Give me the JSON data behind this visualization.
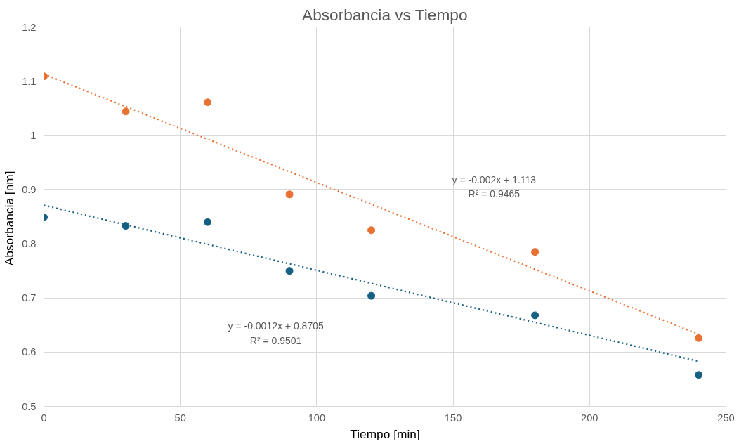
{
  "chart_data": {
    "type": "scatter",
    "title": "Absorbancia vs Tiempo",
    "xlabel": "Tiempo [min]",
    "ylabel": "Absorbancia  [nm]",
    "x": [
      0,
      30,
      60,
      90,
      120,
      180,
      240
    ],
    "series": [
      {
        "marker": "circle",
        "color": "#156082",
        "values": [
          0.849,
          0.833,
          0.84,
          0.75,
          0.704,
          0.668,
          0.558
        ]
      },
      {
        "marker": "circle",
        "color": "#e97132",
        "values": [
          1.109,
          1.044,
          1.061,
          0.891,
          0.825,
          0.785,
          0.626
        ]
      },
      {
        "type": "line",
        "marker": "none",
        "line_style": "dotted",
        "color": "#156082",
        "values": [
          0.871,
          0.835,
          0.799,
          0.763,
          0.727,
          0.655,
          0.583
        ]
      },
      {
        "type": "line",
        "marker": "none",
        "line_style": "dotted",
        "color": "#e97132",
        "values": [
          1.113,
          1.053,
          0.993,
          0.933,
          0.873,
          0.753,
          0.633
        ]
      }
    ],
    "annotations": [
      "y = -0.0012x + 0.8705\nR² = 0.9501",
      "y = -0.002x + 1.113\nR² = 0.9465"
    ],
    "xlim": [
      0,
      250
    ],
    "ylim": [
      0.5,
      1.2
    ],
    "xticks": [
      0,
      50,
      100,
      150,
      200,
      250
    ],
    "yticks": [
      0.5,
      0.6,
      0.7,
      0.8,
      0.9,
      1,
      1.1,
      1.2
    ],
    "grid": true
  }
}
